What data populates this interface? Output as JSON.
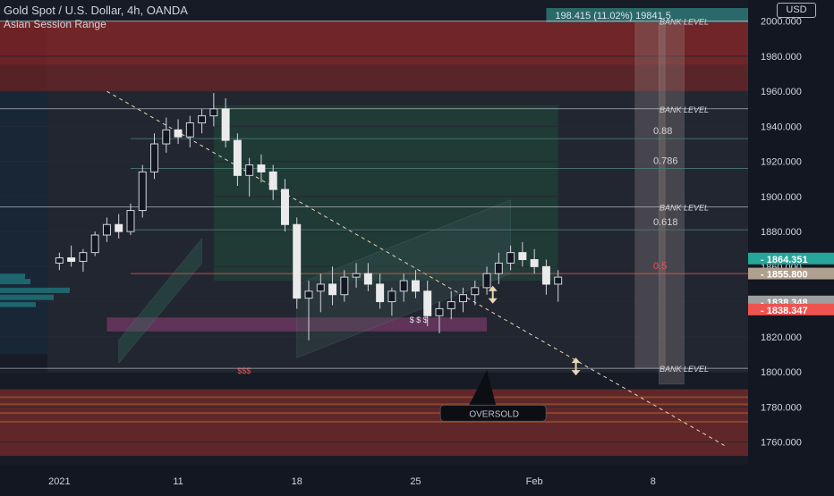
{
  "header": {
    "title": "Gold Spot / U.S. Dollar, 4h, OANDA",
    "subtitle": "Asian Session Range",
    "currency_button": "USD"
  },
  "measure_label": "198.415 (11.02%) 19841.5",
  "oversold_label": "OVERSOLD",
  "dollar_marks": [
    "$ $ $",
    "$$$"
  ],
  "chart_data": {
    "type": "candlestick",
    "title": "Gold Spot / U.S. Dollar, 4h, OANDA",
    "y_axis": {
      "ylim": [
        1747,
        2008
      ],
      "ticks": [
        2000,
        1980,
        1960,
        1940,
        1920,
        1900,
        1880,
        1860,
        1840,
        1820,
        1800,
        1780,
        1760
      ],
      "tick_labels": [
        "2000.000",
        "1980.000",
        "1960.000",
        "1940.000",
        "1920.000",
        "1900.000",
        "1880.000",
        "1860.000",
        "1840.000",
        "1820.000",
        "1800.000",
        "1780.000",
        "1760.000"
      ]
    },
    "x_axis": {
      "tick_labels": [
        "2021",
        "11",
        "18",
        "25",
        "Feb",
        "8"
      ],
      "tick_index": [
        0,
        10,
        20,
        30,
        40,
        50
      ],
      "index_range": [
        -5,
        58
      ]
    },
    "price_badges": [
      {
        "value": "1864.351",
        "color": "#26a69a"
      },
      {
        "value": "1855.800",
        "color": "#b0a08f"
      },
      {
        "value": "1838.348",
        "color": "#9e9e9e"
      },
      {
        "value": "1838.347",
        "color": "#ef5350"
      }
    ],
    "levels": [
      {
        "label": "BANK LEVEL",
        "value": 2000
      },
      {
        "label": "BANK LEVEL",
        "value": 1950
      },
      {
        "label": "0.88",
        "value": 1933
      },
      {
        "label": "0.786",
        "value": 1916
      },
      {
        "label": "BANK LEVEL",
        "value": 1894
      },
      {
        "label": "0.618",
        "value": 1881
      },
      {
        "label": "0.5",
        "value": 1856
      },
      {
        "label": "BANK LEVEL",
        "value": 1802
      }
    ],
    "zones": [
      {
        "name": "supply",
        "from": 1975,
        "to": 2000,
        "color": "#8b2525"
      },
      {
        "name": "upper-band",
        "from": 1960,
        "to": 1975,
        "color": "#6e2626"
      },
      {
        "name": "demand",
        "from": 1752,
        "to": 1790,
        "color": "#7a2c2c"
      }
    ],
    "series": [
      {
        "name": "",
        "candles": [
          [
            1862,
            1868,
            1858,
            1865
          ],
          [
            1865,
            1872,
            1860,
            1863
          ],
          [
            1863,
            1870,
            1857,
            1868
          ],
          [
            1868,
            1880,
            1866,
            1878
          ],
          [
            1878,
            1888,
            1874,
            1884
          ],
          [
            1884,
            1890,
            1876,
            1880
          ],
          [
            1880,
            1896,
            1878,
            1892
          ],
          [
            1892,
            1918,
            1888,
            1914
          ],
          [
            1914,
            1936,
            1910,
            1930
          ],
          [
            1930,
            1945,
            1925,
            1938
          ],
          [
            1938,
            1944,
            1930,
            1934
          ],
          [
            1934,
            1946,
            1928,
            1942
          ],
          [
            1942,
            1950,
            1936,
            1946
          ],
          [
            1946,
            1959,
            1940,
            1950
          ],
          [
            1950,
            1956,
            1928,
            1932
          ],
          [
            1932,
            1936,
            1906,
            1912
          ],
          [
            1912,
            1922,
            1900,
            1918
          ],
          [
            1918,
            1924,
            1908,
            1914
          ],
          [
            1914,
            1918,
            1898,
            1904
          ],
          [
            1904,
            1910,
            1880,
            1884
          ],
          [
            1884,
            1888,
            1836,
            1842
          ],
          [
            1842,
            1852,
            1818,
            1846
          ],
          [
            1846,
            1856,
            1834,
            1850
          ],
          [
            1850,
            1860,
            1838,
            1844
          ],
          [
            1844,
            1858,
            1840,
            1854
          ],
          [
            1854,
            1862,
            1848,
            1856
          ],
          [
            1856,
            1862,
            1846,
            1850
          ],
          [
            1850,
            1856,
            1836,
            1840
          ],
          [
            1840,
            1848,
            1832,
            1846
          ],
          [
            1846,
            1856,
            1840,
            1852
          ],
          [
            1852,
            1858,
            1842,
            1846
          ],
          [
            1846,
            1852,
            1826,
            1832
          ],
          [
            1832,
            1840,
            1822,
            1836
          ],
          [
            1836,
            1846,
            1830,
            1840
          ],
          [
            1840,
            1848,
            1834,
            1844
          ],
          [
            1844,
            1852,
            1838,
            1848
          ],
          [
            1848,
            1860,
            1844,
            1856
          ],
          [
            1856,
            1868,
            1850,
            1862
          ],
          [
            1862,
            1872,
            1858,
            1868
          ],
          [
            1868,
            1874,
            1860,
            1864
          ],
          [
            1864,
            1870,
            1856,
            1860
          ],
          [
            1860,
            1864,
            1844,
            1850
          ],
          [
            1850,
            1858,
            1840,
            1854
          ]
        ]
      }
    ]
  }
}
